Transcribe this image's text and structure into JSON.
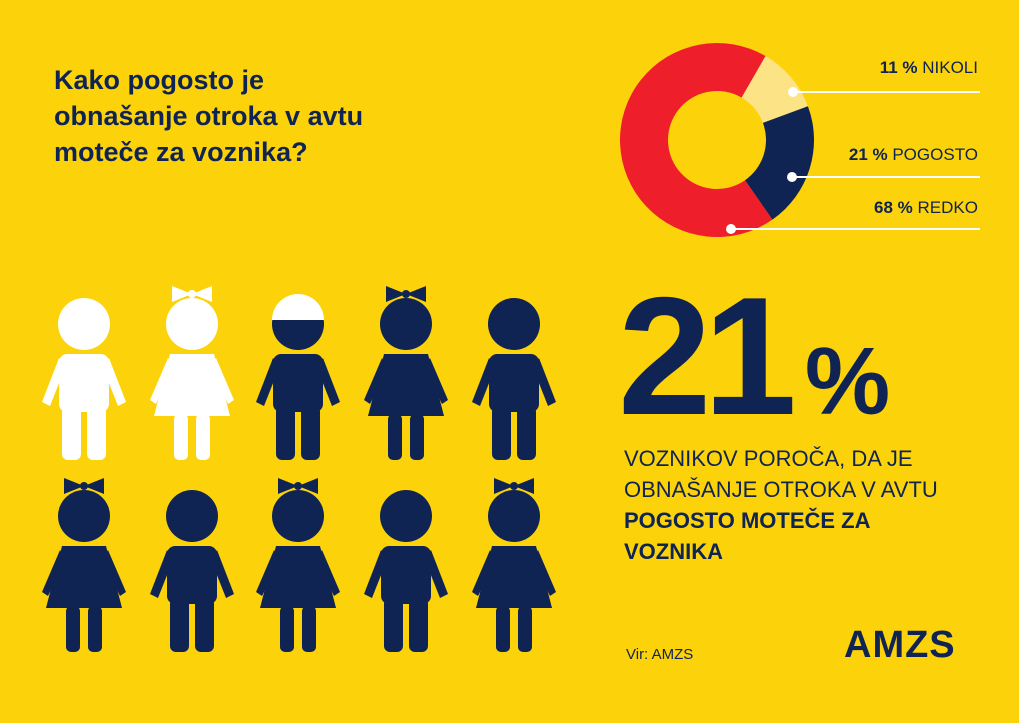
{
  "title_lines": [
    "Kako pogosto je",
    "obnašanje otroka v avtu",
    "moteče za voznika?"
  ],
  "chart_data": {
    "type": "pie",
    "slices": [
      {
        "value": 11,
        "label": "11 % NIKOLI",
        "pct": "11 %",
        "name": "NIKOLI",
        "color": "#FCE386"
      },
      {
        "value": 21,
        "label": "21 % POGOSTO",
        "pct": "21 %",
        "name": "POGOSTO",
        "color": "#0F2452"
      },
      {
        "value": 68,
        "label": "68 % REDKO",
        "pct": "68 %",
        "name": "REDKO",
        "color": "#EE1E2A"
      }
    ]
  },
  "highlight": {
    "number": "21",
    "percent_sign": "%"
  },
  "description": {
    "plain": "VOZNIKOV POROČA, DA JE OBNAŠANJE OTROKA V AVTU ",
    "bold": "POGOSTO MOTEČE ZA VOZNIKA"
  },
  "figures": [
    {
      "color": "white",
      "type": "boy"
    },
    {
      "color": "white",
      "type": "girl"
    },
    {
      "color": "navy",
      "type": "boy-cap"
    },
    {
      "color": "navy",
      "type": "girl"
    },
    {
      "color": "navy",
      "type": "boy"
    },
    {
      "color": "navy",
      "type": "girl"
    },
    {
      "color": "navy",
      "type": "boy"
    },
    {
      "color": "navy",
      "type": "girl"
    },
    {
      "color": "navy",
      "type": "boy"
    },
    {
      "color": "navy",
      "type": "girl"
    }
  ],
  "source": "Vir: AMZS",
  "logo": "AMZS",
  "colors": {
    "background": "#FCD20A",
    "navy": "#0F2452",
    "white": "#FFFFFF",
    "red": "#EE1E2A",
    "light_yellow": "#FCE386"
  }
}
